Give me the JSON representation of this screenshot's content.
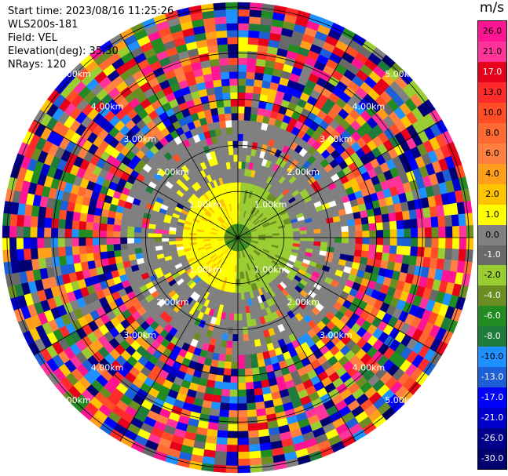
{
  "header": {
    "start_time": "Start time: 2023/08/16 11:25:26",
    "instrument": "WLS200s-181",
    "field": "Field: VEL",
    "elevation": "Elevation(deg): 35.30",
    "nrays": "NRays: 120"
  },
  "colorbar": {
    "title": "m/s",
    "ticks": [
      "26.0",
      "21.0",
      "17.0",
      "13.0",
      "10.0",
      "8.0",
      "6.0",
      "4.0",
      "2.0",
      "1.0",
      "0.0",
      "-1.0",
      "-2.0",
      "-4.0",
      "-6.0",
      "-8.0",
      "-10.0",
      "-13.0",
      "-17.0",
      "-21.0",
      "-26.0",
      "-30.0"
    ],
    "colors": [
      "#ff1493",
      "#ff3399",
      "#e6001a",
      "#ff2a2a",
      "#ff4d26",
      "#ff6a33",
      "#ff8040",
      "#ff9f1a",
      "#ffc400",
      "#ffff00",
      "#808080",
      "#696969",
      "#9acd32",
      "#6b8e23",
      "#228b22",
      "#1e7b3c",
      "#1e90ff",
      "#1c5fd6",
      "#0000ff",
      "#0000cd",
      "#00008b",
      "#000070"
    ]
  },
  "chart_data": {
    "type": "ppi",
    "field": "VEL",
    "units": "m/s",
    "nrays": 120,
    "elevation_deg": 35.3,
    "range_ring_labels": [
      "1.00km",
      "2.00km",
      "3.00km",
      "4.00km",
      "5.00km"
    ],
    "range_rings_km": [
      1,
      2,
      3,
      4,
      5
    ],
    "vmin": -30,
    "vmax": 26
  }
}
